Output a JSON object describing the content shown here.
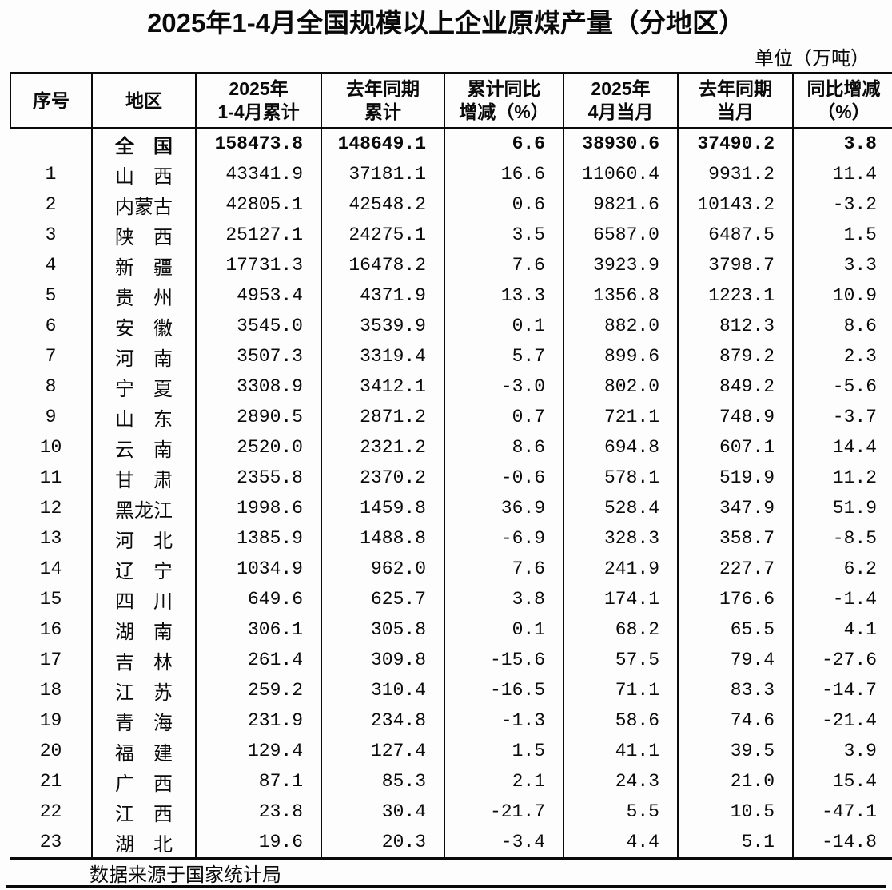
{
  "title": "2025年1-4月全国规模以上企业原煤产量（分地区）",
  "unit_label": "单位（万吨）",
  "source_note": "数据来源于国家统计局",
  "colors": {
    "text": "#0a0a0a",
    "background": "#fdfdfd",
    "border": "#0a0a0a"
  },
  "table": {
    "columns": [
      {
        "id": "idx",
        "lines": [
          "序号"
        ]
      },
      {
        "id": "region",
        "lines": [
          "地区"
        ]
      },
      {
        "id": "c1",
        "lines": [
          "2025年",
          "1-4月累计"
        ]
      },
      {
        "id": "c2",
        "lines": [
          "去年同期",
          "累计"
        ]
      },
      {
        "id": "c3",
        "lines": [
          "累计同比",
          "增减（%）"
        ]
      },
      {
        "id": "c4",
        "lines": [
          "2025年",
          "4月当月"
        ]
      },
      {
        "id": "c5",
        "lines": [
          "去年同期",
          "当月"
        ]
      },
      {
        "id": "c6",
        "lines": [
          "同比增减",
          "（%）"
        ]
      }
    ],
    "rows": [
      {
        "idx": "",
        "region": "全　国",
        "c1": "158473.8",
        "c2": "148649.1",
        "c3": "6.6",
        "c4": "38930.6",
        "c5": "37490.2",
        "c6": "3.8",
        "bold": true
      },
      {
        "idx": "1",
        "region": "山　西",
        "c1": "43341.9",
        "c2": "37181.1",
        "c3": "16.6",
        "c4": "11060.4",
        "c5": "9931.2",
        "c6": "11.4",
        "bold": false
      },
      {
        "idx": "2",
        "region": "内蒙古",
        "c1": "42805.1",
        "c2": "42548.2",
        "c3": "0.6",
        "c4": "9821.6",
        "c5": "10143.2",
        "c6": "-3.2",
        "bold": false
      },
      {
        "idx": "3",
        "region": "陕　西",
        "c1": "25127.1",
        "c2": "24275.1",
        "c3": "3.5",
        "c4": "6587.0",
        "c5": "6487.5",
        "c6": "1.5",
        "bold": false
      },
      {
        "idx": "4",
        "region": "新　疆",
        "c1": "17731.3",
        "c2": "16478.2",
        "c3": "7.6",
        "c4": "3923.9",
        "c5": "3798.7",
        "c6": "3.3",
        "bold": false
      },
      {
        "idx": "5",
        "region": "贵　州",
        "c1": "4953.4",
        "c2": "4371.9",
        "c3": "13.3",
        "c4": "1356.8",
        "c5": "1223.1",
        "c6": "10.9",
        "bold": false
      },
      {
        "idx": "6",
        "region": "安　徽",
        "c1": "3545.0",
        "c2": "3539.9",
        "c3": "0.1",
        "c4": "882.0",
        "c5": "812.3",
        "c6": "8.6",
        "bold": false
      },
      {
        "idx": "7",
        "region": "河　南",
        "c1": "3507.3",
        "c2": "3319.4",
        "c3": "5.7",
        "c4": "899.6",
        "c5": "879.2",
        "c6": "2.3",
        "bold": false
      },
      {
        "idx": "8",
        "region": "宁　夏",
        "c1": "3308.9",
        "c2": "3412.1",
        "c3": "-3.0",
        "c4": "802.0",
        "c5": "849.2",
        "c6": "-5.6",
        "bold": false
      },
      {
        "idx": "9",
        "region": "山　东",
        "c1": "2890.5",
        "c2": "2871.2",
        "c3": "0.7",
        "c4": "721.1",
        "c5": "748.9",
        "c6": "-3.7",
        "bold": false
      },
      {
        "idx": "10",
        "region": "云　南",
        "c1": "2520.0",
        "c2": "2321.2",
        "c3": "8.6",
        "c4": "694.8",
        "c5": "607.1",
        "c6": "14.4",
        "bold": false
      },
      {
        "idx": "11",
        "region": "甘　肃",
        "c1": "2355.8",
        "c2": "2370.2",
        "c3": "-0.6",
        "c4": "578.1",
        "c5": "519.9",
        "c6": "11.2",
        "bold": false
      },
      {
        "idx": "12",
        "region": "黑龙江",
        "c1": "1998.6",
        "c2": "1459.8",
        "c3": "36.9",
        "c4": "528.4",
        "c5": "347.9",
        "c6": "51.9",
        "bold": false
      },
      {
        "idx": "13",
        "region": "河　北",
        "c1": "1385.9",
        "c2": "1488.8",
        "c3": "-6.9",
        "c4": "328.3",
        "c5": "358.7",
        "c6": "-8.5",
        "bold": false
      },
      {
        "idx": "14",
        "region": "辽　宁",
        "c1": "1034.9",
        "c2": "962.0",
        "c3": "7.6",
        "c4": "241.9",
        "c5": "227.7",
        "c6": "6.2",
        "bold": false
      },
      {
        "idx": "15",
        "region": "四　川",
        "c1": "649.6",
        "c2": "625.7",
        "c3": "3.8",
        "c4": "174.1",
        "c5": "176.6",
        "c6": "-1.4",
        "bold": false
      },
      {
        "idx": "16",
        "region": "湖　南",
        "c1": "306.1",
        "c2": "305.8",
        "c3": "0.1",
        "c4": "68.2",
        "c5": "65.5",
        "c6": "4.1",
        "bold": false
      },
      {
        "idx": "17",
        "region": "吉　林",
        "c1": "261.4",
        "c2": "309.8",
        "c3": "-15.6",
        "c4": "57.5",
        "c5": "79.4",
        "c6": "-27.6",
        "bold": false
      },
      {
        "idx": "18",
        "region": "江　苏",
        "c1": "259.2",
        "c2": "310.4",
        "c3": "-16.5",
        "c4": "71.1",
        "c5": "83.3",
        "c6": "-14.7",
        "bold": false
      },
      {
        "idx": "19",
        "region": "青　海",
        "c1": "231.9",
        "c2": "234.8",
        "c3": "-1.3",
        "c4": "58.6",
        "c5": "74.6",
        "c6": "-21.4",
        "bold": false
      },
      {
        "idx": "20",
        "region": "福　建",
        "c1": "129.4",
        "c2": "127.4",
        "c3": "1.5",
        "c4": "41.1",
        "c5": "39.5",
        "c6": "3.9",
        "bold": false
      },
      {
        "idx": "21",
        "region": "广　西",
        "c1": "87.1",
        "c2": "85.3",
        "c3": "2.1",
        "c4": "24.3",
        "c5": "21.0",
        "c6": "15.4",
        "bold": false
      },
      {
        "idx": "22",
        "region": "江　西",
        "c1": "23.8",
        "c2": "30.4",
        "c3": "-21.7",
        "c4": "5.5",
        "c5": "10.5",
        "c6": "-47.1",
        "bold": false
      },
      {
        "idx": "23",
        "region": "湖　北",
        "c1": "19.6",
        "c2": "20.3",
        "c3": "-3.4",
        "c4": "4.4",
        "c5": "5.1",
        "c6": "-14.8",
        "bold": false
      }
    ],
    "column_widths": {
      "idx": 100,
      "region": 128,
      "c1": 155,
      "c2": 152,
      "c3": 147,
      "c4": 141,
      "c5": 142,
      "c6": 125
    }
  }
}
